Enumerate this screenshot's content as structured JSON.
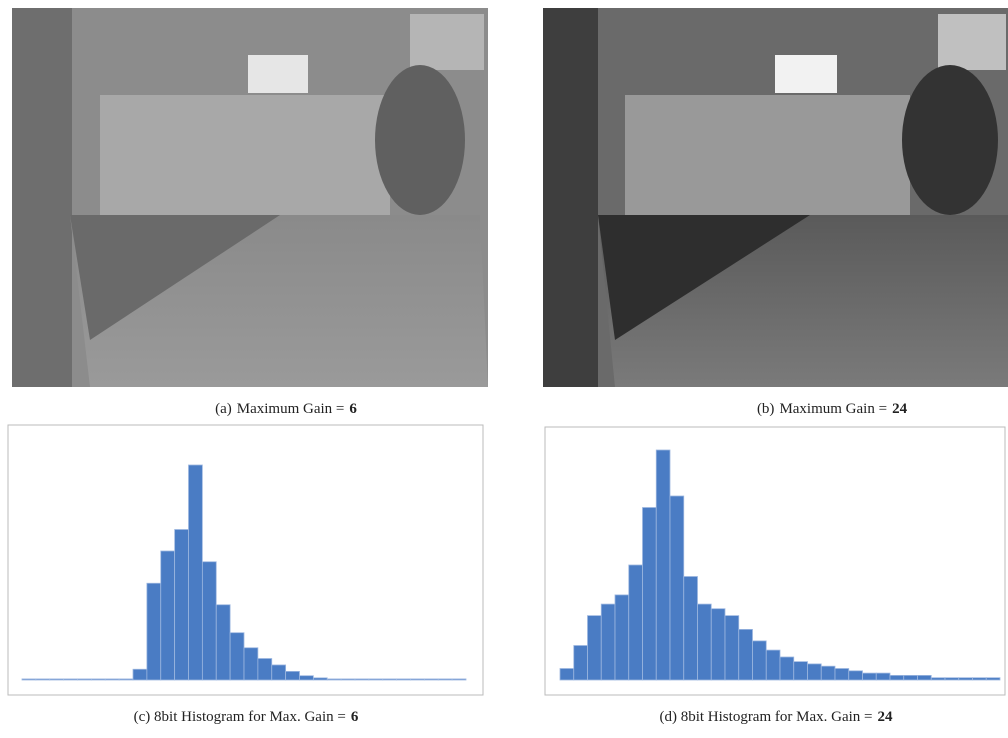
{
  "figures": [
    {
      "label": "(a)",
      "text": "Maximum Gain =",
      "emphasis": "6"
    },
    {
      "label": "(b)",
      "text": "Maximum Gain =",
      "emphasis": "24"
    }
  ],
  "chart_data": [
    {
      "type": "histogram",
      "title": "(c) 8bit Histogram for Max. Gain =",
      "title_emphasis": "6",
      "bins": [
        0,
        8,
        16,
        24,
        32,
        40,
        48,
        56,
        64,
        72,
        80,
        88,
        96,
        104,
        112,
        120,
        128,
        136,
        144,
        152,
        160,
        168,
        176,
        184,
        192,
        200,
        208,
        216,
        224,
        232,
        240,
        248,
        256
      ],
      "values": [
        0.5,
        0.5,
        0.5,
        0.5,
        0.5,
        0.5,
        0.5,
        0.5,
        5,
        45,
        60,
        70,
        100,
        55,
        35,
        22,
        15,
        10,
        7,
        4,
        2,
        1,
        0.5,
        0.5,
        0.5,
        0.5,
        0.5,
        0.5,
        0.5,
        0.5,
        0.5,
        0.5
      ],
      "xlim": [
        0,
        256
      ],
      "ylim": [
        0,
        100
      ],
      "color": "#4a7cc4"
    },
    {
      "type": "histogram",
      "title": "(d) 8bit Histogram for Max. Gain =",
      "title_emphasis": "24",
      "bins": [
        0,
        8,
        16,
        24,
        32,
        40,
        48,
        56,
        64,
        72,
        80,
        88,
        96,
        104,
        112,
        120,
        128,
        136,
        144,
        152,
        160,
        168,
        176,
        184,
        192,
        200,
        208,
        216,
        224,
        232,
        240,
        248,
        256
      ],
      "values": [
        5,
        15,
        28,
        33,
        37,
        50,
        75,
        100,
        80,
        45,
        33,
        31,
        28,
        22,
        17,
        13,
        10,
        8,
        7,
        6,
        5,
        4,
        3,
        3,
        2,
        2,
        2,
        1,
        1,
        1,
        1,
        1
      ],
      "xlim": [
        0,
        256
      ],
      "ylim": [
        0,
        100
      ],
      "color": "#4a7cc4"
    }
  ]
}
